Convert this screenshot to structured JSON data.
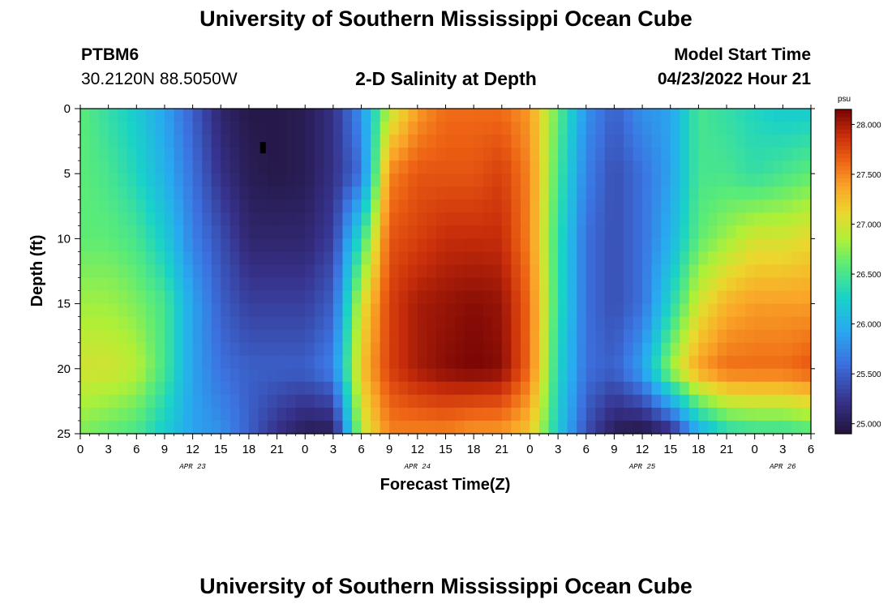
{
  "header": {
    "title": "University of Southern Mississippi Ocean Cube",
    "station_id": "PTBM6",
    "coords": "30.2120N  88.5050W",
    "plot_title": "2-D Salinity at Depth",
    "model_start_label": "Model Start Time",
    "model_start_time": "04/23/2022 Hour 21"
  },
  "footer": {
    "title": "University of Southern Mississippi Ocean Cube"
  },
  "chart_data": {
    "type": "heatmap",
    "title": "2-D Salinity at Depth",
    "xlabel": "Forecast Time(Z)",
    "ylabel": "Depth (ft)",
    "x_unit": "forecast hour from model start",
    "xlim": [
      0,
      78
    ],
    "ylim": [
      0,
      25
    ],
    "x_ticks": [
      0,
      3,
      6,
      9,
      12,
      15,
      18,
      21,
      24,
      27,
      30,
      33,
      36,
      39,
      42,
      45,
      48,
      51,
      54,
      57,
      60,
      63,
      66,
      69,
      72,
      75,
      78
    ],
    "x_tick_labels": [
      "0",
      "3",
      "6",
      "9",
      "12",
      "15",
      "18",
      "21",
      "0",
      "3",
      "6",
      "9",
      "12",
      "15",
      "18",
      "21",
      "0",
      "3",
      "6",
      "9",
      "12",
      "15",
      "18",
      "21",
      "0",
      "3",
      "6"
    ],
    "y_ticks": [
      0,
      5,
      10,
      15,
      20,
      25
    ],
    "y_tick_labels": [
      "0",
      "5",
      "10",
      "15",
      "20",
      "25"
    ],
    "day_labels": [
      {
        "label": "APR 23",
        "x": 12
      },
      {
        "label": "APR 24",
        "x": 36
      },
      {
        "label": "APR 25",
        "x": 60
      },
      {
        "label": "APR 26",
        "x": 75
      }
    ],
    "colorbar": {
      "unit": "psu",
      "min": 24.9,
      "max": 28.15,
      "ticks": [
        25.0,
        25.5,
        26.0,
        26.5,
        27.0,
        27.5,
        28.0
      ],
      "tick_labels": [
        "25.000",
        "25.500",
        "26.000",
        "26.500",
        "27.000",
        "27.500",
        "28.000"
      ]
    },
    "grid": {
      "x_hours": [
        0,
        3,
        6,
        9,
        12,
        15,
        18,
        21,
        24,
        27,
        30,
        33,
        36,
        39,
        42,
        45,
        48,
        51,
        54,
        57,
        60,
        63,
        66,
        69,
        72,
        75,
        78
      ],
      "depths_ft": [
        0,
        5,
        10,
        15,
        20,
        25
      ],
      "salinity_psu": [
        [
          26.6,
          26.4,
          26.2,
          25.9,
          25.5,
          25.1,
          24.95,
          24.95,
          25.0,
          25.2,
          25.8,
          26.9,
          27.4,
          27.6,
          27.6,
          27.6,
          27.4,
          26.6,
          25.8,
          25.5,
          25.8,
          25.9,
          26.5,
          26.4,
          26.3,
          26.2,
          26.2
        ],
        [
          26.6,
          26.5,
          26.3,
          26.0,
          25.6,
          25.2,
          25.0,
          24.95,
          25.0,
          25.2,
          25.6,
          27.5,
          27.7,
          27.7,
          27.7,
          27.8,
          27.5,
          26.5,
          25.7,
          25.4,
          25.6,
          25.9,
          26.5,
          26.5,
          26.4,
          26.5,
          26.6
        ],
        [
          26.6,
          26.6,
          26.5,
          26.2,
          25.7,
          25.4,
          25.1,
          25.1,
          25.1,
          25.3,
          26.4,
          27.7,
          27.8,
          27.9,
          27.9,
          27.9,
          27.5,
          26.4,
          25.6,
          25.4,
          25.6,
          26.0,
          26.6,
          26.8,
          27.0,
          27.0,
          27.1
        ],
        [
          26.8,
          26.8,
          26.7,
          26.5,
          25.9,
          25.5,
          25.3,
          25.3,
          25.3,
          25.5,
          27.0,
          27.8,
          28.0,
          28.05,
          28.1,
          28.05,
          27.6,
          26.4,
          25.6,
          25.4,
          25.6,
          26.3,
          27.0,
          27.3,
          27.4,
          27.4,
          27.4
        ],
        [
          27.0,
          27.0,
          26.9,
          26.5,
          25.9,
          25.6,
          25.5,
          25.5,
          25.5,
          25.7,
          27.2,
          27.8,
          28.0,
          28.1,
          28.15,
          28.1,
          27.6,
          26.3,
          25.6,
          25.5,
          25.9,
          26.8,
          27.4,
          27.6,
          27.6,
          27.6,
          27.7
        ],
        [
          26.7,
          26.6,
          26.5,
          26.2,
          25.9,
          25.8,
          25.5,
          25.2,
          25.0,
          25.0,
          26.9,
          27.5,
          27.5,
          27.5,
          27.4,
          27.4,
          27.2,
          26.2,
          25.4,
          25.0,
          24.9,
          25.1,
          25.9,
          26.3,
          26.4,
          26.4,
          26.5
        ]
      ]
    },
    "annotations": [
      {
        "type": "marker",
        "x": 19.5,
        "depth": 3
      }
    ]
  }
}
